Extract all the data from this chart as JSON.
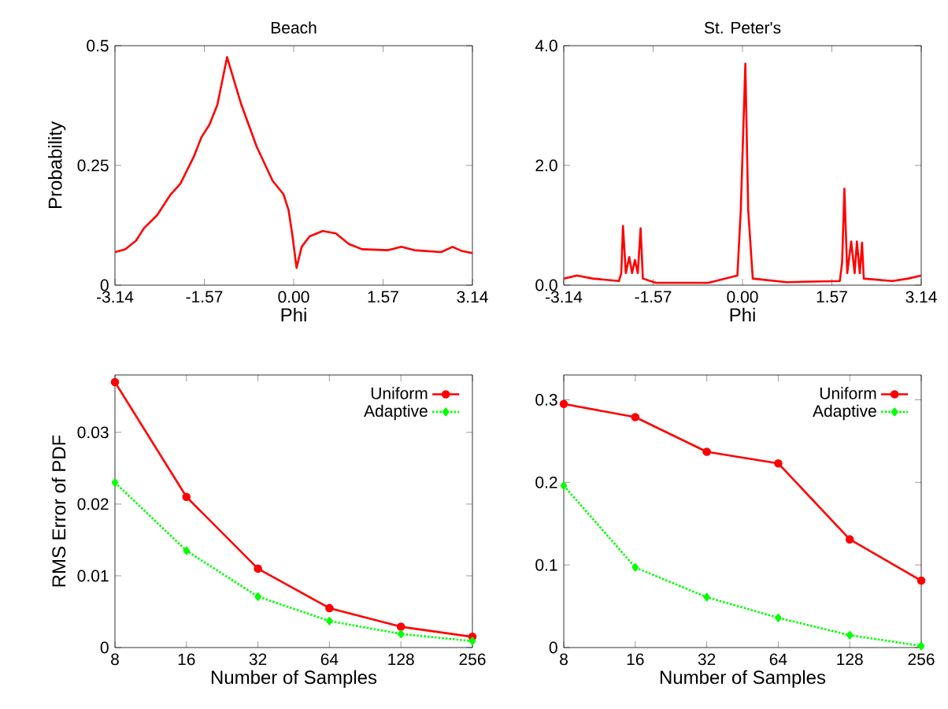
{
  "chart_data": [
    {
      "type": "line",
      "title": "Beach",
      "xlabel": "Phi",
      "ylabel": "Probability",
      "color": "#ff0000",
      "xlim": [
        -3.14,
        3.14
      ],
      "ylim": [
        0,
        0.5
      ],
      "xticks": [
        -3.14,
        -1.57,
        {
          "value": 0,
          "label": "0.00"
        },
        1.57,
        3.14
      ],
      "yticks": [
        0,
        0.25,
        0.5
      ],
      "x": [
        -3.14,
        -2.96,
        -2.77,
        -2.63,
        -2.4,
        -2.17,
        -1.99,
        -1.76,
        -1.62,
        -1.48,
        -1.34,
        -1.17,
        -1.06,
        -0.92,
        -0.65,
        -0.37,
        -0.18,
        -0.09,
        -0.02,
        0.05,
        0.14,
        0.28,
        0.51,
        0.74,
        0.97,
        1.2,
        1.66,
        1.89,
        2.12,
        2.59,
        2.79,
        2.96,
        3.14
      ],
      "values": [
        0.069,
        0.075,
        0.093,
        0.119,
        0.146,
        0.188,
        0.212,
        0.267,
        0.309,
        0.335,
        0.377,
        0.476,
        0.432,
        0.377,
        0.289,
        0.218,
        0.19,
        0.157,
        0.102,
        0.036,
        0.08,
        0.102,
        0.113,
        0.108,
        0.086,
        0.075,
        0.073,
        0.08,
        0.073,
        0.069,
        0.08,
        0.071,
        0.067
      ]
    },
    {
      "type": "line",
      "title": "St. Peter's",
      "xlabel": "Phi",
      "color": "#ff0000",
      "xlim": [
        -3.14,
        3.14
      ],
      "ylim": [
        0,
        4
      ],
      "xticks": [
        -3.14,
        -1.57,
        {
          "value": 0,
          "label": "0.00"
        },
        1.57,
        3.14
      ],
      "yticks": [
        {
          "value": 0,
          "label": "0.0"
        },
        {
          "value": 2,
          "label": "2.0"
        },
        {
          "value": 4,
          "label": "4.0"
        }
      ],
      "x": [
        -3.14,
        -2.91,
        -2.63,
        -2.17,
        -2.13,
        -2.1,
        -2.05,
        -1.99,
        -1.94,
        -1.89,
        -1.84,
        -1.79,
        -1.75,
        -1.52,
        -0.6,
        -0.09,
        -0.03,
        0.05,
        0.1,
        0.18,
        0.78,
        1.71,
        1.75,
        1.79,
        1.84,
        1.91,
        1.97,
        2.01,
        2.06,
        2.1,
        2.13,
        2.63,
        2.91,
        3.14
      ],
      "values": [
        0.11,
        0.16,
        0.11,
        0.07,
        0.2,
        0.99,
        0.2,
        0.47,
        0.2,
        0.42,
        0.2,
        0.95,
        0.11,
        0.04,
        0.04,
        0.16,
        1.26,
        3.7,
        1.26,
        0.11,
        0.05,
        0.07,
        0.38,
        1.61,
        0.2,
        0.73,
        0.2,
        0.73,
        0.2,
        0.71,
        0.11,
        0.07,
        0.11,
        0.16
      ]
    },
    {
      "type": "line",
      "xlabel": "Number of Samples",
      "ylabel": "RMS Error of PDF",
      "legend": "top right",
      "ylim": [
        0,
        0.038
      ],
      "yticks": [
        0,
        0.01,
        0.02,
        0.03
      ],
      "categories": [
        "8",
        "16",
        "32",
        "64",
        "128",
        "256"
      ],
      "series": [
        {
          "name": "Uniform",
          "color": "#ff0000",
          "marker": "circle",
          "line_style": "solid",
          "values": [
            0.037,
            0.021,
            0.011,
            0.0055,
            0.0029,
            0.0015
          ]
        },
        {
          "name": "Adaptive",
          "color": "#00ff00",
          "marker": "diamond",
          "line_style": "dotted",
          "values": [
            0.023,
            0.0135,
            0.0071,
            0.0037,
            0.0019,
            0.0009
          ]
        }
      ]
    },
    {
      "type": "line",
      "xlabel": "Number of Samples",
      "legend": "top right",
      "ylim": [
        0,
        0.33
      ],
      "yticks": [
        0,
        0.1,
        0.2,
        0.3
      ],
      "categories": [
        "8",
        "16",
        "32",
        "64",
        "128",
        "256"
      ],
      "series": [
        {
          "name": "Uniform",
          "color": "#ff0000",
          "marker": "circle",
          "line_style": "solid",
          "values": [
            0.295,
            0.279,
            0.237,
            0.223,
            0.131,
            0.081
          ]
        },
        {
          "name": "Adaptive",
          "color": "#00ff00",
          "marker": "diamond",
          "line_style": "dotted",
          "values": [
            0.196,
            0.097,
            0.061,
            0.036,
            0.015,
            0.002
          ]
        }
      ]
    }
  ]
}
